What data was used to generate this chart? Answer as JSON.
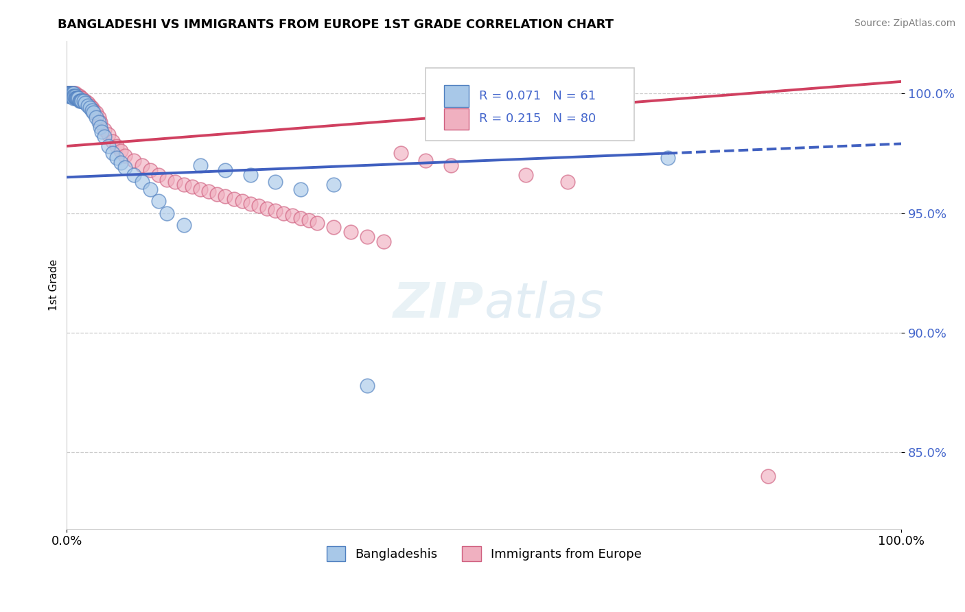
{
  "title": "BANGLADESHI VS IMMIGRANTS FROM EUROPE 1ST GRADE CORRELATION CHART",
  "source": "Source: ZipAtlas.com",
  "ylabel": "1st Grade",
  "xlim": [
    0.0,
    1.0
  ],
  "ylim": [
    0.818,
    1.022
  ],
  "yticks": [
    0.85,
    0.9,
    0.95,
    1.0
  ],
  "ytick_labels": [
    "85.0%",
    "90.0%",
    "95.0%",
    "100.0%"
  ],
  "xticks": [
    0.0,
    1.0
  ],
  "xtick_labels": [
    "0.0%",
    "100.0%"
  ],
  "blue_R": 0.071,
  "blue_N": 61,
  "pink_R": 0.215,
  "pink_N": 80,
  "blue_color": "#a8c8e8",
  "pink_color": "#f0b0c0",
  "blue_edge_color": "#5080c0",
  "pink_edge_color": "#d06080",
  "blue_line_color": "#4060c0",
  "pink_line_color": "#d04060",
  "legend_text_color": "#4466cc",
  "blue_trend_start_x": 0.0,
  "blue_trend_start_y": 0.965,
  "blue_trend_end_solid_x": 0.72,
  "blue_trend_end_solid_y": 0.975,
  "blue_trend_end_dash_x": 1.0,
  "blue_trend_end_dash_y": 0.979,
  "pink_trend_start_x": 0.0,
  "pink_trend_start_y": 0.978,
  "pink_trend_end_x": 1.0,
  "pink_trend_end_y": 1.005,
  "blue_scatter_x": [
    0.001,
    0.001,
    0.002,
    0.002,
    0.003,
    0.003,
    0.003,
    0.004,
    0.004,
    0.005,
    0.005,
    0.005,
    0.006,
    0.006,
    0.007,
    0.007,
    0.008,
    0.008,
    0.008,
    0.009,
    0.01,
    0.01,
    0.011,
    0.012,
    0.013,
    0.014,
    0.015,
    0.016,
    0.017,
    0.018,
    0.02,
    0.022,
    0.025,
    0.028,
    0.03,
    0.032,
    0.035,
    0.038,
    0.04,
    0.042,
    0.045,
    0.05,
    0.055,
    0.06,
    0.065,
    0.07,
    0.08,
    0.09,
    0.1,
    0.11,
    0.12,
    0.14,
    0.16,
    0.19,
    0.22,
    0.25,
    0.28,
    0.32,
    0.36,
    0.55,
    0.72
  ],
  "blue_scatter_y": [
    1.0,
    1.0,
    1.0,
    0.999,
    1.0,
    1.0,
    0.999,
    1.0,
    0.999,
    1.0,
    0.999,
    0.999,
    1.0,
    0.999,
    1.0,
    0.999,
    1.0,
    0.999,
    0.998,
    0.999,
    0.999,
    0.998,
    0.998,
    0.998,
    0.998,
    0.998,
    0.997,
    0.997,
    0.997,
    0.997,
    0.997,
    0.996,
    0.995,
    0.994,
    0.993,
    0.992,
    0.99,
    0.988,
    0.986,
    0.984,
    0.982,
    0.978,
    0.975,
    0.973,
    0.971,
    0.969,
    0.966,
    0.963,
    0.96,
    0.955,
    0.95,
    0.945,
    0.97,
    0.968,
    0.966,
    0.963,
    0.96,
    0.962,
    0.878,
    0.985,
    0.973
  ],
  "pink_scatter_x": [
    0.001,
    0.001,
    0.001,
    0.002,
    0.002,
    0.002,
    0.003,
    0.003,
    0.003,
    0.004,
    0.004,
    0.004,
    0.005,
    0.005,
    0.005,
    0.006,
    0.006,
    0.007,
    0.007,
    0.008,
    0.008,
    0.009,
    0.01,
    0.01,
    0.011,
    0.012,
    0.013,
    0.014,
    0.015,
    0.016,
    0.017,
    0.018,
    0.02,
    0.022,
    0.025,
    0.028,
    0.03,
    0.032,
    0.035,
    0.038,
    0.04,
    0.045,
    0.05,
    0.055,
    0.06,
    0.065,
    0.07,
    0.08,
    0.09,
    0.1,
    0.11,
    0.12,
    0.13,
    0.14,
    0.15,
    0.16,
    0.17,
    0.18,
    0.19,
    0.2,
    0.21,
    0.22,
    0.23,
    0.24,
    0.25,
    0.26,
    0.27,
    0.28,
    0.29,
    0.3,
    0.32,
    0.34,
    0.36,
    0.38,
    0.4,
    0.43,
    0.46,
    0.55,
    0.6,
    0.84
  ],
  "pink_scatter_y": [
    1.0,
    1.0,
    1.0,
    1.0,
    1.0,
    1.0,
    1.0,
    1.0,
    1.0,
    1.0,
    1.0,
    1.0,
    1.0,
    1.0,
    1.0,
    1.0,
    1.0,
    1.0,
    1.0,
    1.0,
    1.0,
    1.0,
    1.0,
    0.999,
    0.999,
    0.999,
    0.999,
    0.999,
    0.999,
    0.998,
    0.998,
    0.998,
    0.997,
    0.997,
    0.996,
    0.995,
    0.994,
    0.993,
    0.992,
    0.99,
    0.988,
    0.985,
    0.983,
    0.98,
    0.978,
    0.976,
    0.974,
    0.972,
    0.97,
    0.968,
    0.966,
    0.964,
    0.963,
    0.962,
    0.961,
    0.96,
    0.959,
    0.958,
    0.957,
    0.956,
    0.955,
    0.954,
    0.953,
    0.952,
    0.951,
    0.95,
    0.949,
    0.948,
    0.947,
    0.946,
    0.944,
    0.942,
    0.94,
    0.938,
    0.975,
    0.972,
    0.97,
    0.966,
    0.963,
    0.84
  ]
}
